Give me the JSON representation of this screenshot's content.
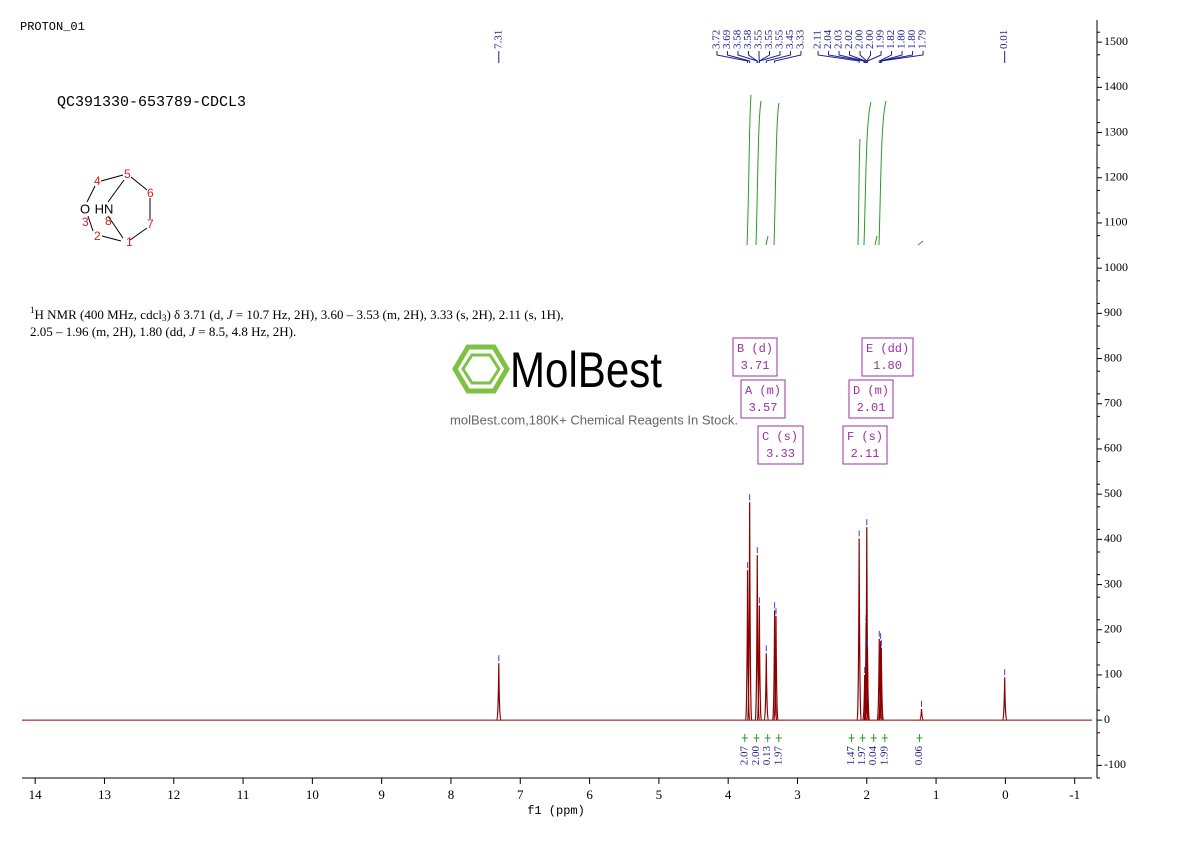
{
  "header": {
    "experiment": "PROTON_01",
    "sample": "QC391330-653789-CDCL3"
  },
  "structure": {
    "atoms": [
      "O",
      "HN",
      "1",
      "2",
      "3",
      "4",
      "5",
      "6",
      "7",
      "8"
    ]
  },
  "description": {
    "lines": [
      [
        "1",
        "H NMR (400 MHz, cdcl",
        "3",
        ") δ 3.71 (d, ",
        "J",
        " = 10.7 Hz, 2H), 3.60 – 3.53 (m, 2H), 3.33 (s, 2H), 2.11 (s, 1H),"
      ],
      [
        "2.05 – 1.96 (m, 2H), 1.80 (dd, ",
        "J",
        " = 8.5, 4.8 Hz, 2H)."
      ]
    ]
  },
  "watermark": {
    "brand": "MolBest",
    "slogan": "molBest.com,180K+ Chemical Reagents In Stock."
  },
  "multiplets": [
    {
      "label": "B (d)",
      "shift": "3.71"
    },
    {
      "label": "E (dd)",
      "shift": "1.80"
    },
    {
      "label": "A (m)",
      "shift": "3.57"
    },
    {
      "label": "D (m)",
      "shift": "2.01"
    },
    {
      "label": "C (s)",
      "shift": "3.33"
    },
    {
      "label": "F (s)",
      "shift": "2.11"
    }
  ],
  "chart_data": {
    "type": "spectrum",
    "xlabel": "f1 (ppm)",
    "color": "#8b0000",
    "x": [
      7.31,
      3.72,
      3.69,
      3.58,
      3.55,
      3.45,
      3.33,
      3.31,
      2.11,
      2.03,
      2.01,
      2.0,
      1.99,
      1.82,
      1.8,
      1.79,
      1.21,
      0.01
    ],
    "values": [
      126,
      332,
      482,
      365,
      254,
      148,
      243,
      230,
      402,
      100,
      215,
      427,
      160,
      180,
      175,
      160,
      25,
      95
    ],
    "peak_labels": [
      7.31,
      3.72,
      3.69,
      3.58,
      3.58,
      3.55,
      3.55,
      3.55,
      3.45,
      3.33,
      2.11,
      2.04,
      2.03,
      2.02,
      {
        "value": 2,
        "label": "2.00"
      },
      {
        "value": 2,
        "label": "2.00"
      },
      1.99,
      1.82,
      {
        "value": 1.8,
        "label": "1.80"
      },
      {
        "value": 1.8,
        "label": "1.80"
      },
      1.79,
      0.01
    ],
    "integrals": {
      "x": [
        3.76,
        3.59,
        3.43,
        3.27,
        2.22,
        2.06,
        1.9,
        1.74,
        1.24
      ],
      "values": [
        2.07,
        {
          "value": 2,
          "label": "2.00"
        },
        0.13,
        1.97,
        1.47,
        1.97,
        0.04,
        1.99,
        0.06
      ]
    },
    "xlim": [
      14.19,
      -1.25
    ],
    "xticks": [
      14,
      13,
      12,
      11,
      10,
      9,
      8,
      7,
      6,
      5,
      4,
      3,
      2,
      1,
      0,
      -1
    ],
    "ylim": [
      -128,
      1549
    ],
    "yticks": [
      -100,
      0,
      100,
      200,
      300,
      400,
      500,
      600,
      700,
      800,
      900,
      1000,
      1100,
      1200,
      1300,
      1400,
      1500
    ]
  }
}
